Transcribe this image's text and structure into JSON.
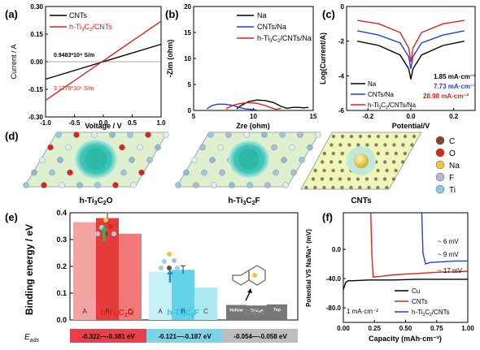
{
  "panel_labels": {
    "a": "(a)",
    "b": "(b)",
    "c": "(c)",
    "d": "(d)",
    "e": "(e)",
    "f": "(f)"
  },
  "colors": {
    "black": "#000000",
    "red": "#e3211c",
    "blue": "#1f3fe0",
    "cyan": "#33bfe8"
  },
  "panel_a": {
    "legend": [
      "CNTs",
      "h-Ti3C2/CNTs"
    ],
    "annotations": [
      "0.9483*10⁴ S/m",
      "3.1779*10⁴ S/m"
    ]
  },
  "panel_b": {
    "legend": [
      "Na",
      "CNTs/Na",
      "h-Ti3C2/CNTs/Na"
    ]
  },
  "panel_c": {
    "legend": [
      "Na",
      "CNTs/Na",
      "h-Ti3C2/CNTs/Na"
    ],
    "currents": [
      "1.85 mA·cm⁻²",
      "7.73 mA·cm⁻²",
      "28.98 mA·cm⁻²"
    ]
  },
  "panel_d": {
    "structures": [
      "h-Ti3C2O",
      "h-Ti3C2F",
      "CNTs"
    ],
    "legend": [
      {
        "label": "C",
        "color": "#7a4a2a"
      },
      {
        "label": "O",
        "color": "#d9261c"
      },
      {
        "label": "Na",
        "color": "#e9c93b"
      },
      {
        "label": "F",
        "color": "#b5b7d8"
      },
      {
        "label": "Ti",
        "color": "#8fc8e0"
      }
    ]
  },
  "panel_e": {
    "eads_label": "E",
    "eads_sub": "ads",
    "eads_values": [
      "-0.322—-0.381 eV",
      "-0.121—-0.187 eV",
      "-0.054—-0.058 eV"
    ],
    "group_labels": [
      "h-Ti3C2O",
      "h-Ti3C2F",
      "CNTs"
    ],
    "bar_labels": [
      "A",
      "B",
      "C",
      "A",
      "B",
      "C",
      "Hollow",
      "Bridge",
      "Top"
    ]
  },
  "panel_f": {
    "legend": [
      "Cu",
      "CNTs",
      "h-Ti3C2/CNTs"
    ],
    "annotations": [
      "~ 6 mV",
      "~ 9 mV",
      "~ 17 mV"
    ],
    "current_density": "1 mA·cm⁻²"
  },
  "chart_data": [
    {
      "panel": "a",
      "type": "line",
      "xlabel": "Voltage / V",
      "ylabel": "Current / A",
      "xlim": [
        -1.0,
        1.0
      ],
      "ylim": [
        -0.3,
        0.3
      ],
      "xticks": [
        "-1.0",
        "-0.5",
        "0.0",
        "0.5",
        "1.0"
      ],
      "yticks": [
        "-0.30",
        "-0.15",
        "0.00",
        "0.15",
        "0.30"
      ],
      "series": [
        {
          "name": "CNTs",
          "color": "#000000",
          "x": [
            -1.0,
            1.0
          ],
          "y": [
            -0.095,
            0.095
          ]
        },
        {
          "name": "h-Ti3C2/CNTs",
          "color": "#e3211c",
          "x": [
            -1.0,
            1.0
          ],
          "y": [
            -0.21,
            0.22
          ]
        }
      ]
    },
    {
      "panel": "b",
      "type": "line",
      "xlabel": "Zre (ohm)",
      "ylabel": "-Zim (ohm)",
      "xlim": [
        5,
        15
      ],
      "ylim": [
        0,
        20
      ],
      "xticks": [
        "5",
        "10",
        "15"
      ],
      "yticks": [
        "0",
        "5",
        "10",
        "15",
        "20"
      ],
      "series": [
        {
          "name": "Na",
          "color": "#000000",
          "x": [
            8.6,
            9.0,
            9.6,
            10.3,
            11.0,
            11.7,
            12.3,
            12.8,
            13.3,
            13.8,
            14.2,
            14.6
          ],
          "y": [
            0.3,
            1.0,
            1.7,
            2.0,
            1.9,
            1.5,
            0.8,
            0.4,
            0.6,
            0.6,
            0.5,
            0.6
          ]
        },
        {
          "name": "CNTs/Na",
          "color": "#1f3fe0",
          "x": [
            6.1,
            6.5,
            7.0,
            7.6,
            8.2,
            8.8,
            9.3,
            9.8,
            10.3
          ],
          "y": [
            0.3,
            0.9,
            1.2,
            1.2,
            1.0,
            0.6,
            0.3,
            0.2,
            0.1
          ]
        },
        {
          "name": "h-Ti3C2/CNTs/Na",
          "color": "#e3211c",
          "x": [
            7.7,
            8.2,
            8.8,
            9.5,
            10.2,
            10.9,
            11.5,
            11.9,
            12.3
          ],
          "y": [
            0.3,
            0.9,
            1.3,
            1.5,
            1.4,
            1.0,
            0.5,
            0.2,
            0.4
          ]
        }
      ]
    },
    {
      "panel": "c",
      "type": "line",
      "xlabel": "Potential/V",
      "ylabel": "Log(Current/A)",
      "xlim": [
        -0.3,
        0.3
      ],
      "ylim": [
        -6,
        0
      ],
      "xticks": [
        "-0.2",
        "0.0",
        "0.2"
      ],
      "yticks": [
        "0",
        "-2",
        "-4",
        "-6"
      ],
      "series": [
        {
          "name": "Na",
          "color": "#000000",
          "x": [
            -0.25,
            -0.15,
            -0.05,
            -0.01,
            0.0,
            0.01,
            0.05,
            0.15,
            0.25
          ],
          "y": [
            -2.0,
            -2.25,
            -2.8,
            -3.6,
            -4.2,
            -3.6,
            -2.8,
            -2.25,
            -2.0
          ]
        },
        {
          "name": "CNTs/Na",
          "color": "#1f3fe0",
          "x": [
            -0.25,
            -0.15,
            -0.05,
            -0.01,
            0.0,
            0.01,
            0.05,
            0.15,
            0.25
          ],
          "y": [
            -1.4,
            -1.65,
            -2.1,
            -2.9,
            -3.6,
            -2.9,
            -2.1,
            -1.65,
            -1.4
          ]
        },
        {
          "name": "h-Ti3C2/CNTs/Na",
          "color": "#e3211c",
          "x": [
            -0.25,
            -0.15,
            -0.05,
            -0.01,
            0.0,
            0.01,
            0.05,
            0.15,
            0.25
          ],
          "y": [
            -0.8,
            -1.0,
            -1.5,
            -2.4,
            -3.2,
            -2.4,
            -1.5,
            -1.0,
            -0.8
          ]
        }
      ]
    },
    {
      "panel": "e",
      "type": "bar",
      "ylabel": "Binding energy / eV",
      "ylim": [
        0.0,
        0.4
      ],
      "yticks": [
        "0.0",
        "0.1",
        "0.2",
        "0.3",
        "0.4"
      ],
      "categories": [
        "A",
        "B",
        "C",
        "A",
        "B",
        "C",
        "Hollow",
        "Bridge",
        "Top"
      ],
      "groups": [
        "h-Ti3C2O",
        "h-Ti3C2O",
        "h-Ti3C2O",
        "h-Ti3C2F",
        "h-Ti3C2F",
        "h-Ti3C2F",
        "CNTs",
        "CNTs",
        "CNTs"
      ],
      "values": [
        0.365,
        0.38,
        0.322,
        0.18,
        0.187,
        0.121,
        0.056,
        0.054,
        0.058
      ],
      "errors": [
        0,
        0.02,
        0,
        0,
        0.015,
        0,
        0,
        0,
        0
      ],
      "bar_colors": [
        "#f4a3a3",
        "#e63b3b",
        "#f27878",
        "#c6f2f7",
        "#63d3ea",
        "#aee9f2",
        "#777777",
        "#777777",
        "#777777"
      ]
    },
    {
      "panel": "f",
      "type": "line",
      "xlabel": "Capacity (mAh·cm⁻²)",
      "ylabel": "Potential VS Na/Na⁺ (mV)",
      "xlim": [
        0.0,
        1.0
      ],
      "ylim": [
        -100,
        50
      ],
      "xticks": [
        "0.00",
        "0.25",
        "0.50",
        "0.75",
        "1.00"
      ],
      "yticks": [
        "-80.0",
        "-40.0",
        "0.0"
      ],
      "series": [
        {
          "name": "Cu",
          "color": "#000000",
          "x": [
            0.0,
            0.02,
            0.04,
            0.08,
            0.2,
            0.4,
            0.6,
            0.8,
            1.0
          ],
          "y": [
            -55,
            -45,
            -43,
            -43,
            -42,
            -42,
            -41,
            -41,
            -41
          ]
        },
        {
          "name": "CNTs",
          "color": "#e3211c",
          "x": [
            0.22,
            0.23,
            0.24,
            0.3,
            0.4,
            0.5,
            0.6,
            0.7,
            0.8,
            0.9,
            1.0
          ],
          "y": [
            50,
            -10,
            -38,
            -37,
            -35,
            -34,
            -33,
            -32,
            -31,
            -31,
            -30
          ]
        },
        {
          "name": "h-Ti3C2/CNTs",
          "color": "#1f3fe0",
          "x": [
            0.63,
            0.64,
            0.66,
            0.7,
            0.8,
            0.9,
            1.0
          ],
          "y": [
            50,
            -5,
            -20,
            -18,
            -17,
            -16,
            -16
          ]
        }
      ]
    }
  ]
}
